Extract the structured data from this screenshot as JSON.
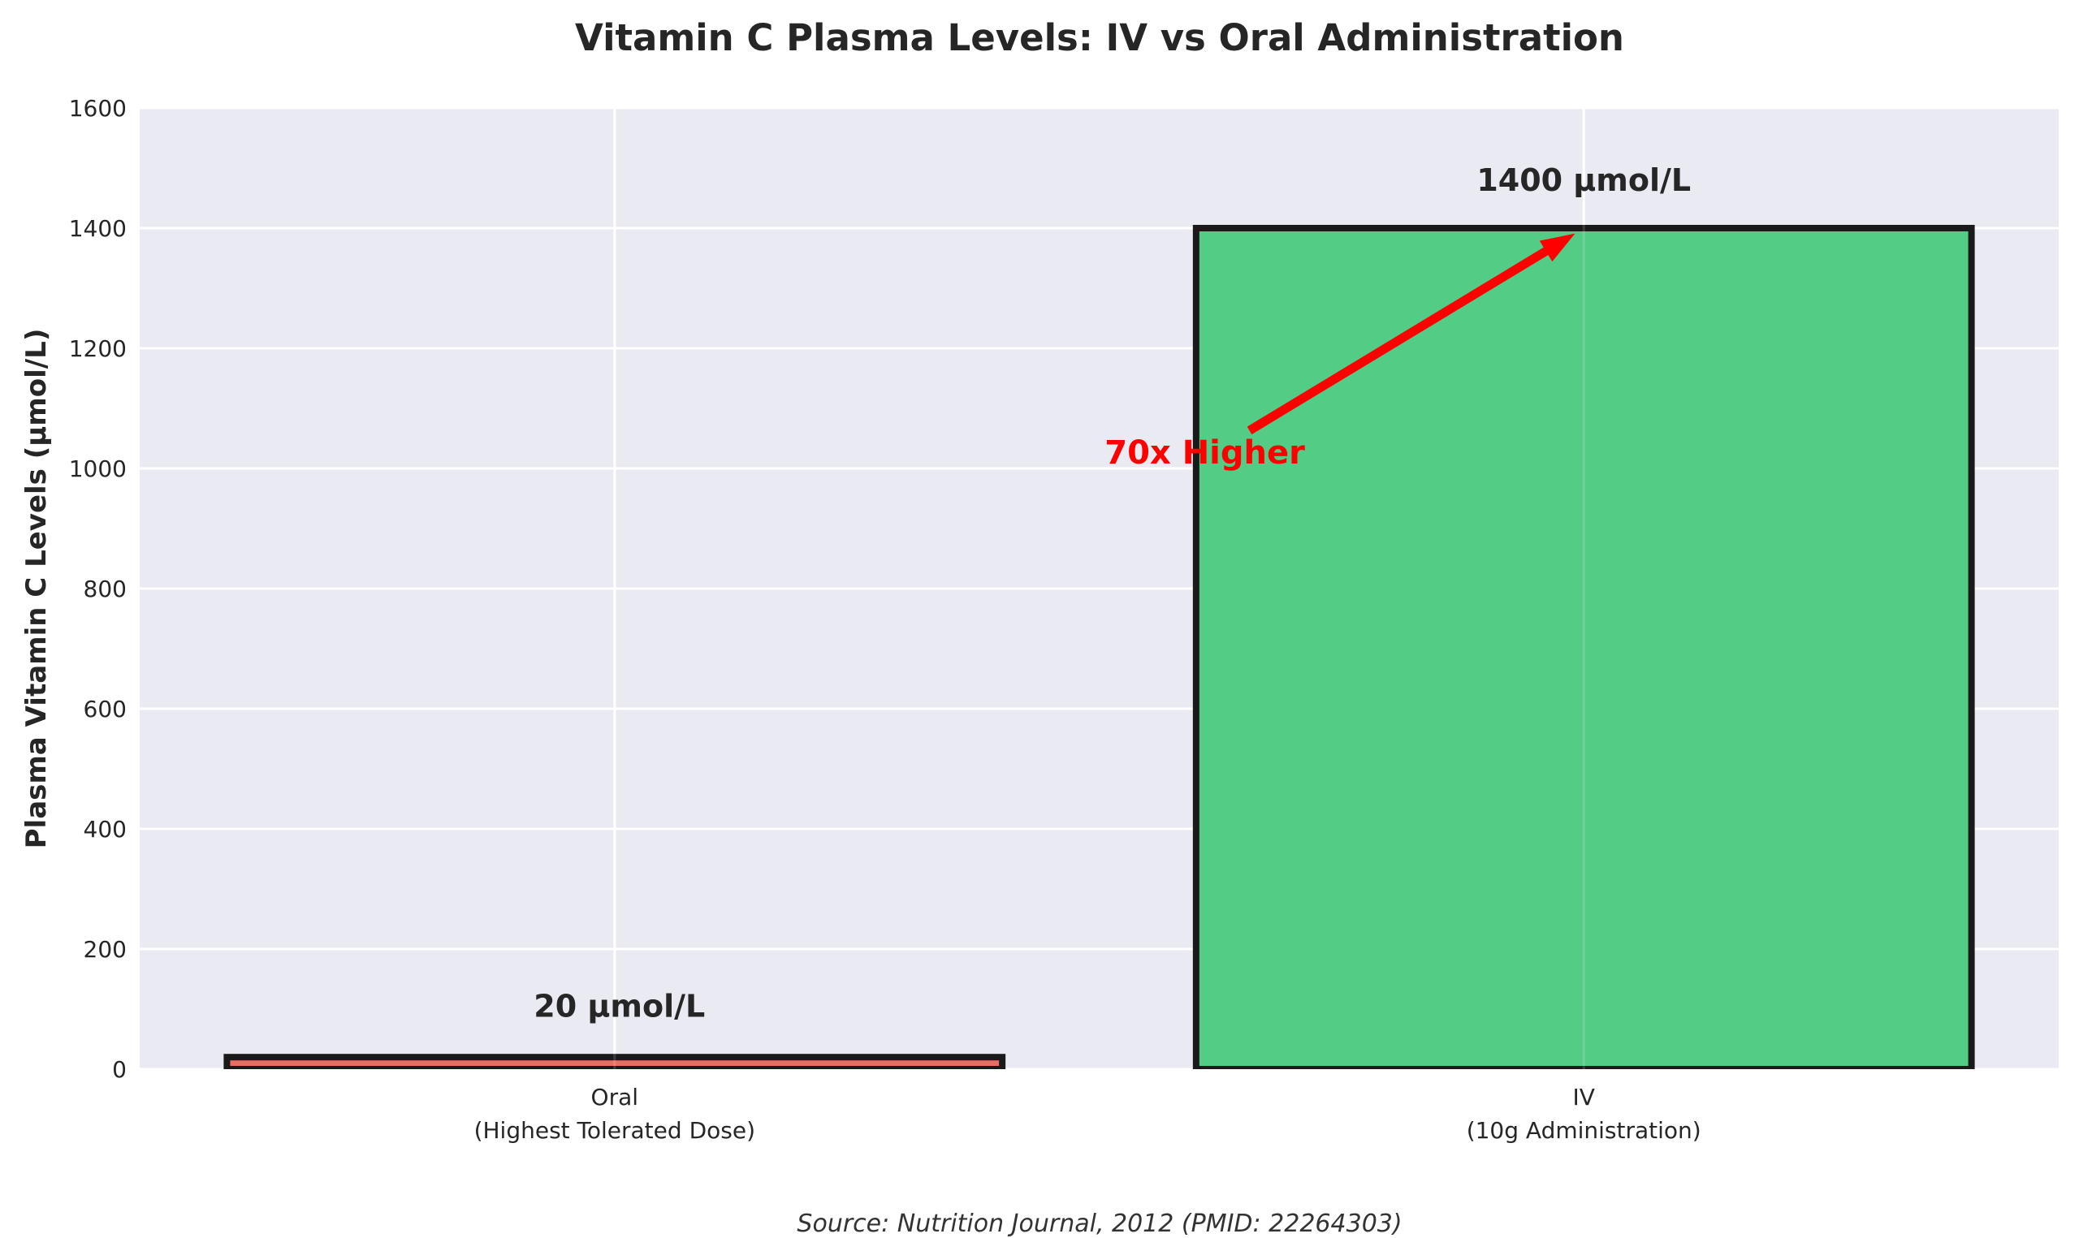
{
  "chart_data": {
    "type": "bar",
    "title": "Vitamin C Plasma Levels: IV vs Oral Administration",
    "ylabel": "Plasma Vitamin C Levels (μmol/L)",
    "xlabel": "",
    "source_note": "Source: Nutrition Journal, 2012 (PMID: 22264303)",
    "categories": [
      "Oral (Highest Tolerated Dose)",
      "IV (10g Administration)"
    ],
    "category_label_lines": [
      [
        "Oral",
        "(Highest Tolerated Dose)"
      ],
      [
        "IV",
        "(10g Administration)"
      ]
    ],
    "series": [
      {
        "name": "Plasma Vitamin C Level",
        "values": [
          20,
          1400
        ]
      }
    ],
    "ylim": [
      0,
      1600
    ],
    "xlim": [
      -0.49,
      1.49
    ],
    "yticks": [
      0,
      200,
      400,
      600,
      800,
      1000,
      1200,
      1400,
      1600
    ],
    "grid": true,
    "legend": false,
    "plot_background": "#eaeaf2",
    "grid_color": "#ffffff",
    "figure_background": "#ffffff",
    "text_color": "#262626",
    "source_text_color": "#333333",
    "bar_width": 0.8,
    "bar_colors": [
      "#eb6c60",
      "#53cc86"
    ],
    "bar_edge_color": "#1a1a1a",
    "value_labels": [
      {
        "text": "20 μmol/L",
        "x": 0.005,
        "y": 105
      },
      {
        "text": "1400 μmol/L",
        "x": 1.0,
        "y": 1480
      }
    ],
    "annotation": {
      "text": "70x Higher",
      "color": "#ff0000",
      "text_x": 0.609,
      "text_y": 1027,
      "arrow_from_x": 0.655,
      "arrow_from_y": 1063,
      "arrow_to_x": 0.991,
      "arrow_to_y": 1391
    }
  }
}
